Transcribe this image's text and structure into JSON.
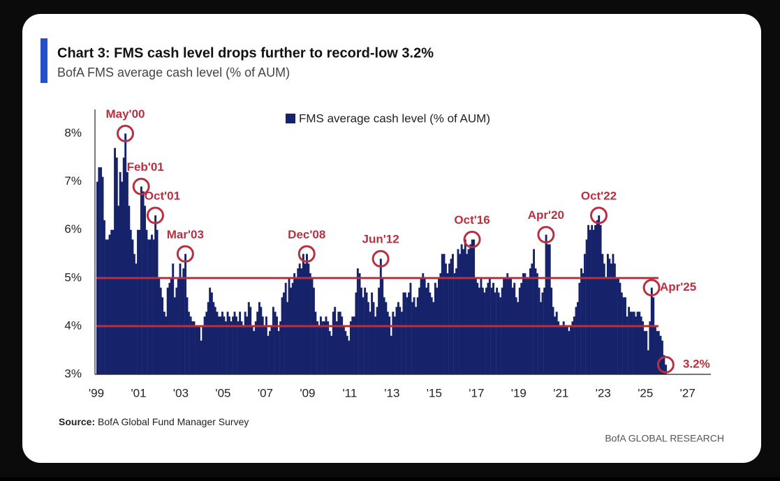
{
  "chart_data": {
    "type": "bar",
    "title": "Chart 3: FMS cash level drops further to record-low 3.2%",
    "subtitle": "BofA FMS average cash level (% of AUM)",
    "source_label": "Source:",
    "source": "BofA Global Fund Manager Survey",
    "footer": "BofA GLOBAL RESEARCH",
    "x": [
      1999,
      1999.08,
      1999.17,
      1999.25,
      1999.33,
      1999.42,
      1999.5,
      1999.58,
      1999.67,
      1999.75,
      1999.83,
      1999.92,
      2000,
      2000.08,
      2000.17,
      2000.25,
      2000.33,
      2000.42,
      2000.5,
      2000.58,
      2000.67,
      2000.75,
      2000.83,
      2000.92,
      2001,
      2001.08,
      2001.17,
      2001.25,
      2001.33,
      2001.42,
      2001.5,
      2001.58,
      2001.67,
      2001.75,
      2001.83,
      2001.92,
      2002,
      2002.08,
      2002.17,
      2002.25,
      2002.33,
      2002.42,
      2002.5,
      2002.58,
      2002.67,
      2002.75,
      2002.83,
      2002.92,
      2003,
      2003.08,
      2003.17,
      2003.25,
      2003.33,
      2003.42,
      2003.5,
      2003.58,
      2003.67,
      2003.75,
      2003.83,
      2003.92,
      2004,
      2004.08,
      2004.17,
      2004.25,
      2004.33,
      2004.42,
      2004.5,
      2004.58,
      2004.67,
      2004.75,
      2004.83,
      2004.92,
      2005,
      2005.08,
      2005.17,
      2005.25,
      2005.33,
      2005.42,
      2005.5,
      2005.58,
      2005.67,
      2005.75,
      2005.83,
      2005.92,
      2006,
      2006.08,
      2006.17,
      2006.25,
      2006.33,
      2006.42,
      2006.5,
      2006.58,
      2006.67,
      2006.75,
      2006.83,
      2006.92,
      2007,
      2007.08,
      2007.17,
      2007.25,
      2007.33,
      2007.42,
      2007.5,
      2007.58,
      2007.67,
      2007.75,
      2007.83,
      2007.92,
      2008,
      2008.08,
      2008.17,
      2008.25,
      2008.33,
      2008.42,
      2008.5,
      2008.58,
      2008.67,
      2008.75,
      2008.83,
      2008.92,
      2009,
      2009.08,
      2009.17,
      2009.25,
      2009.33,
      2009.42,
      2009.5,
      2009.58,
      2009.67,
      2009.75,
      2009.83,
      2009.92,
      2010,
      2010.08,
      2010.17,
      2010.25,
      2010.33,
      2010.42,
      2010.5,
      2010.58,
      2010.67,
      2010.75,
      2010.83,
      2010.92,
      2011,
      2011.08,
      2011.17,
      2011.25,
      2011.33,
      2011.42,
      2011.5,
      2011.58,
      2011.67,
      2011.75,
      2011.83,
      2011.92,
      2012,
      2012.08,
      2012.17,
      2012.25,
      2012.33,
      2012.42,
      2012.5,
      2012.58,
      2012.67,
      2012.75,
      2012.83,
      2012.92,
      2013,
      2013.08,
      2013.17,
      2013.25,
      2013.33,
      2013.42,
      2013.5,
      2013.58,
      2013.67,
      2013.75,
      2013.83,
      2013.92,
      2014,
      2014.08,
      2014.17,
      2014.25,
      2014.33,
      2014.42,
      2014.5,
      2014.58,
      2014.67,
      2014.75,
      2014.83,
      2014.92,
      2015,
      2015.08,
      2015.17,
      2015.25,
      2015.33,
      2015.42,
      2015.5,
      2015.58,
      2015.67,
      2015.75,
      2015.83,
      2015.92,
      2016,
      2016.08,
      2016.17,
      2016.25,
      2016.33,
      2016.42,
      2016.5,
      2016.58,
      2016.67,
      2016.75,
      2016.83,
      2016.92,
      2017,
      2017.08,
      2017.17,
      2017.25,
      2017.33,
      2017.42,
      2017.5,
      2017.58,
      2017.67,
      2017.75,
      2017.83,
      2017.92,
      2018,
      2018.08,
      2018.17,
      2018.25,
      2018.33,
      2018.42,
      2018.5,
      2018.58,
      2018.67,
      2018.75,
      2018.83,
      2018.92,
      2019,
      2019.08,
      2019.17,
      2019.25,
      2019.33,
      2019.42,
      2019.5,
      2019.58,
      2019.67,
      2019.75,
      2019.83,
      2019.92,
      2020,
      2020.08,
      2020.17,
      2020.25,
      2020.33,
      2020.42,
      2020.5,
      2020.58,
      2020.67,
      2020.75,
      2020.83,
      2020.92,
      2021,
      2021.08,
      2021.17,
      2021.25,
      2021.33,
      2021.42,
      2021.5,
      2021.58,
      2021.67,
      2021.75,
      2021.83,
      2021.92,
      2022,
      2022.08,
      2022.17,
      2022.25,
      2022.33,
      2022.42,
      2022.5,
      2022.58,
      2022.67,
      2022.75,
      2022.83,
      2022.92,
      2023,
      2023.08,
      2023.17,
      2023.25,
      2023.33,
      2023.42,
      2023.5,
      2023.58,
      2023.67,
      2023.75,
      2023.83,
      2023.92,
      2024,
      2024.08,
      2024.17,
      2024.25,
      2024.33,
      2024.42,
      2024.5,
      2024.58,
      2024.67,
      2024.75,
      2024.83,
      2024.92,
      2025,
      2025.08,
      2025.17,
      2025.25,
      2025.33,
      2025.42,
      2025.5,
      2025.58,
      2025.67,
      2025.75,
      2025.83,
      2025.92
    ],
    "series": [
      {
        "name": "FMS average cash level (% of AUM)",
        "color": "#16236a",
        "values": [
          7.0,
          7.3,
          7.3,
          7.1,
          6.2,
          5.8,
          5.8,
          5.9,
          6.0,
          6.0,
          7.7,
          7.5,
          6.5,
          7.2,
          7.0,
          7.5,
          8.0,
          7.2,
          6.5,
          6.0,
          5.8,
          5.5,
          5.3,
          6.0,
          6.0,
          6.9,
          6.8,
          6.5,
          6.0,
          5.8,
          5.8,
          5.9,
          5.8,
          6.3,
          6.0,
          5.0,
          4.8,
          4.6,
          4.3,
          4.2,
          4.8,
          4.9,
          5.0,
          5.3,
          4.6,
          4.8,
          5.0,
          5.3,
          5.0,
          5.2,
          5.5,
          4.6,
          4.3,
          4.2,
          4.1,
          4.1,
          4.0,
          4.0,
          4.0,
          3.7,
          4.0,
          4.2,
          4.3,
          4.5,
          4.8,
          4.7,
          4.5,
          4.4,
          4.3,
          4.2,
          4.2,
          4.3,
          4.2,
          4.1,
          4.3,
          4.2,
          4.1,
          4.2,
          4.3,
          4.2,
          4.1,
          4.3,
          4.1,
          4.0,
          4.3,
          4.2,
          4.5,
          4.4,
          4.0,
          3.9,
          4.1,
          4.3,
          4.5,
          4.4,
          4.2,
          4.0,
          4.2,
          3.8,
          3.9,
          4.0,
          4.4,
          4.3,
          4.2,
          3.9,
          4.1,
          4.6,
          4.7,
          4.9,
          4.5,
          5.0,
          4.8,
          4.9,
          5.1,
          5.0,
          5.2,
          5.3,
          5.2,
          5.5,
          5.3,
          5.5,
          5.3,
          5.1,
          5.0,
          4.8,
          4.3,
          4.1,
          4.0,
          4.2,
          4.1,
          4.1,
          4.2,
          4.1,
          3.9,
          3.8,
          4.3,
          4.4,
          4.1,
          4.3,
          4.3,
          4.2,
          4.0,
          3.9,
          3.8,
          3.7,
          4.1,
          4.2,
          4.2,
          4.7,
          5.2,
          5.1,
          4.8,
          4.6,
          4.8,
          4.7,
          4.5,
          4.3,
          4.7,
          4.5,
          4.2,
          4.4,
          4.8,
          5.4,
          5.0,
          4.6,
          4.5,
          4.3,
          4.2,
          3.8,
          4.3,
          4.2,
          4.4,
          4.5,
          4.4,
          4.3,
          4.7,
          4.7,
          4.6,
          4.7,
          4.9,
          4.5,
          4.6,
          4.4,
          4.6,
          4.8,
          5.0,
          5.1,
          5.0,
          4.8,
          4.9,
          4.7,
          4.6,
          4.5,
          4.9,
          4.8,
          5.0,
          5.1,
          5.5,
          5.5,
          5.3,
          5.1,
          5.3,
          5.4,
          5.5,
          5.1,
          5.2,
          5.6,
          5.5,
          5.7,
          5.6,
          5.8,
          5.5,
          5.6,
          5.7,
          5.8,
          5.8,
          5.0,
          4.9,
          4.8,
          5.0,
          4.8,
          4.7,
          4.8,
          4.9,
          5.0,
          4.8,
          4.9,
          4.7,
          4.8,
          4.7,
          4.6,
          4.8,
          5.0,
          5.0,
          5.1,
          5.0,
          5.0,
          4.8,
          4.9,
          4.6,
          4.5,
          4.8,
          4.9,
          5.1,
          5.1,
          5.0,
          5.0,
          5.2,
          5.3,
          5.6,
          5.2,
          5.1,
          4.8,
          4.5,
          4.7,
          4.8,
          5.9,
          5.7,
          5.7,
          4.8,
          4.4,
          4.2,
          4.3,
          4.1,
          4.0,
          4.0,
          4.1,
          4.0,
          4.0,
          3.9,
          4.0,
          4.1,
          4.2,
          4.4,
          4.5,
          4.9,
          5.2,
          5.1,
          5.5,
          5.8,
          6.1,
          6.0,
          6.1,
          6.0,
          6.1,
          6.2,
          6.3,
          6.1,
          5.5,
          5.3,
          5.0,
          5.5,
          5.4,
          5.3,
          5.5,
          5.3,
          5.0,
          5.0,
          4.9,
          4.7,
          4.6,
          4.6,
          4.2,
          4.4,
          4.3,
          4.3,
          4.3,
          4.2,
          4.3,
          4.3,
          4.2,
          4.1,
          3.9,
          3.9,
          3.5,
          4.1,
          4.8,
          4.6,
          4.0,
          3.9,
          3.9,
          3.8,
          3.7,
          3.4,
          3.2
        ]
      }
    ],
    "xlim": [
      1999,
      2028
    ],
    "xticks": [
      {
        "value": 1999,
        "label": "'99"
      },
      {
        "value": 2001,
        "label": "'01"
      },
      {
        "value": 2003,
        "label": "'03"
      },
      {
        "value": 2005,
        "label": "'05"
      },
      {
        "value": 2007,
        "label": "'07"
      },
      {
        "value": 2009,
        "label": "'09"
      },
      {
        "value": 2011,
        "label": "'11"
      },
      {
        "value": 2013,
        "label": "'13"
      },
      {
        "value": 2015,
        "label": "'15"
      },
      {
        "value": 2017,
        "label": "'17"
      },
      {
        "value": 2019,
        "label": "'19"
      },
      {
        "value": 2021,
        "label": "'21"
      },
      {
        "value": 2023,
        "label": "'23"
      },
      {
        "value": 2025,
        "label": "'25"
      },
      {
        "value": 2027,
        "label": "'27"
      }
    ],
    "ylim": [
      3,
      8.5
    ],
    "yticks": [
      {
        "value": 3,
        "label": "3%"
      },
      {
        "value": 4,
        "label": "4%"
      },
      {
        "value": 5,
        "label": "5%"
      },
      {
        "value": 6,
        "label": "6%"
      },
      {
        "value": 7,
        "label": "7%"
      },
      {
        "value": 8,
        "label": "8%"
      }
    ],
    "reference_lines": [
      5,
      4
    ],
    "reference_color": "#b8303f",
    "annotations": [
      {
        "label": "May'00",
        "x": 2000.33,
        "y": 8.0
      },
      {
        "label": "Feb'01",
        "x": 2001.08,
        "y": 6.9
      },
      {
        "label": "Oct'01",
        "x": 2001.75,
        "y": 6.3
      },
      {
        "label": "Mar'03",
        "x": 2003.17,
        "y": 5.5
      },
      {
        "label": "Dec'08",
        "x": 2008.92,
        "y": 5.5
      },
      {
        "label": "Jun'12",
        "x": 2012.42,
        "y": 5.4
      },
      {
        "label": "Oct'16",
        "x": 2016.75,
        "y": 5.8
      },
      {
        "label": "Apr'20",
        "x": 2020.25,
        "y": 5.9
      },
      {
        "label": "Oct'22",
        "x": 2022.75,
        "y": 6.3
      },
      {
        "label": "Apr'25",
        "x": 2025.25,
        "y": 4.8
      },
      {
        "label": "3.2%",
        "x": 2025.92,
        "y": 3.2
      }
    ]
  }
}
